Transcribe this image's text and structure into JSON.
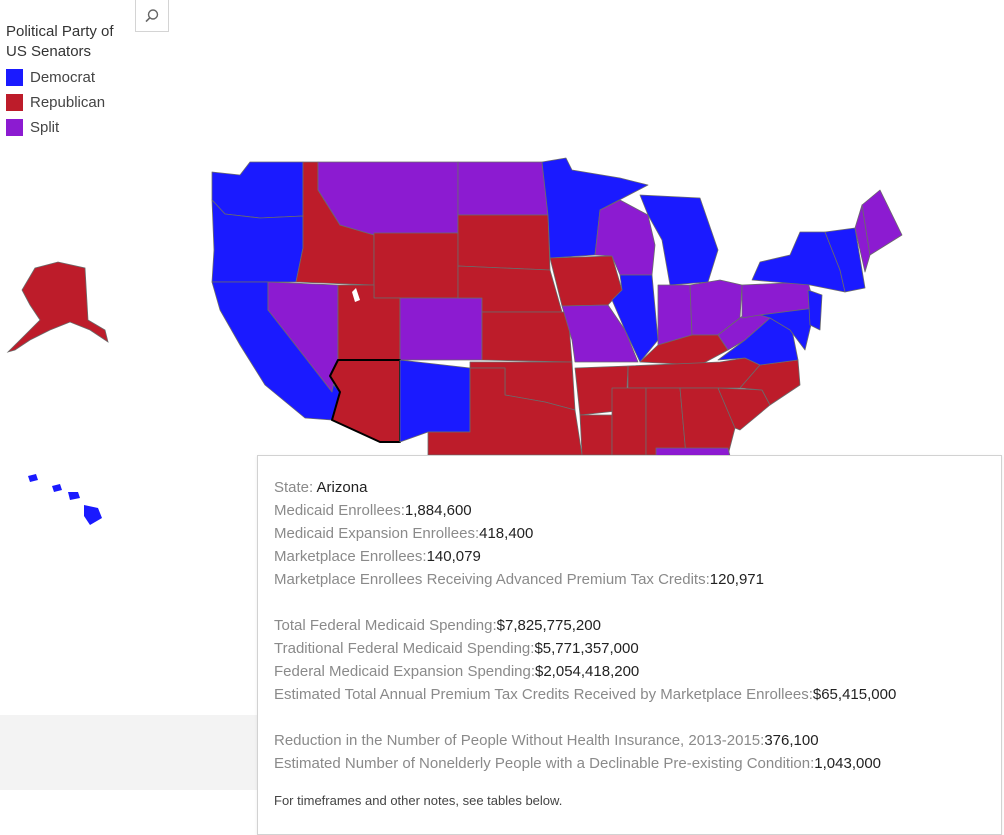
{
  "toolbar": {
    "search_icon": "search-icon"
  },
  "legend": {
    "title": "Political Party of US Senators",
    "items": [
      {
        "label": "Democrat",
        "color": "#1a1aff"
      },
      {
        "label": "Republican",
        "color": "#bd1c2a"
      },
      {
        "label": "Split",
        "color": "#8c1bd1"
      }
    ]
  },
  "colors": {
    "democrat": "#1a1aff",
    "republican": "#bd1c2a",
    "split": "#8c1bd1",
    "border": "#6b6b6b",
    "highlight_border": "#000000"
  },
  "map": {
    "selected_state": "Arizona"
  },
  "tooltip": {
    "state_label": "State: ",
    "state_value": "Arizona",
    "group1": [
      {
        "label": "Medicaid Enrollees:",
        "value": "1,884,600"
      },
      {
        "label": "Medicaid Expansion Enrollees:",
        "value": "418,400"
      },
      {
        "label": "Marketplace Enrollees:",
        "value": "140,079"
      },
      {
        "label": "Marketplace Enrollees Receiving Advanced Premium Tax Credits:",
        "value": "120,971"
      }
    ],
    "group2": [
      {
        "label": "Total Federal Medicaid Spending:",
        "value": "$7,825,775,200"
      },
      {
        "label": "Traditional Federal Medicaid Spending:",
        "value": "$5,771,357,000"
      },
      {
        "label": "Federal Medicaid Expansion Spending:",
        "value": "$2,054,418,200"
      },
      {
        "label": "Estimated Total Annual Premium Tax Credits Received by Marketplace Enrollees:",
        "value": "$65,415,000"
      }
    ],
    "group3": [
      {
        "label": "Reduction in the Number of People Without Health Insurance, 2013-2015:",
        "value": "376,100"
      },
      {
        "label": "Estimated Number of Nonelderly People with a Declinable Pre-existing Condition:",
        "value": "1,043,000"
      }
    ],
    "note": "For timeframes and other notes, see tables below."
  }
}
